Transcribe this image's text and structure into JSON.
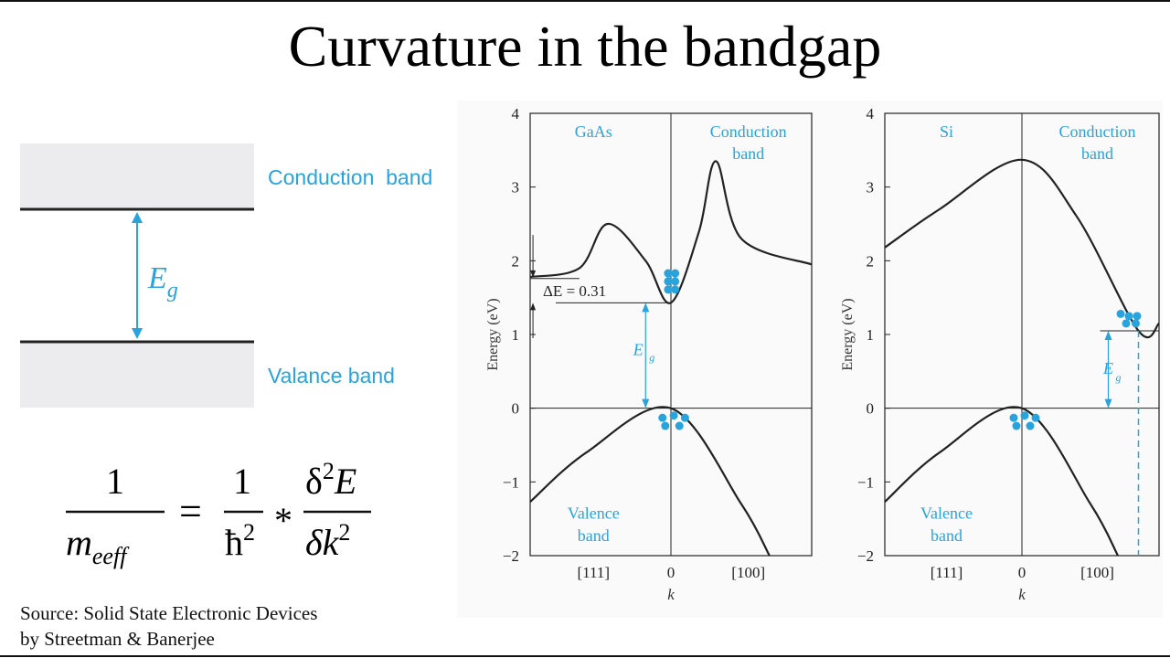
{
  "title": "Curvature in the bandgap",
  "band_diagram": {
    "conduction_label": "Conduction  band",
    "valence_label": "Valance band",
    "gap_label": "E",
    "gap_subscript": "g"
  },
  "formula": {
    "numerator_left": "1",
    "denominator_left": "m",
    "denominator_left_sub": "eeff",
    "equals": "=",
    "numerator_mid": "1",
    "denominator_mid": "ħ",
    "star": "*",
    "numerator_right": "δ",
    "numerator_right_tail": "E",
    "denominator_right": "δk",
    "exponent": "2"
  },
  "source": {
    "line1": "Source: Solid State Electronic Devices",
    "line2": "by Streetman & Banerjee"
  },
  "colors": {
    "accent": "#29a3dc",
    "band_fill": "#ececef",
    "line": "#222222"
  },
  "chart_data": [
    {
      "type": "line",
      "material": "GaAs",
      "region_label": [
        "Conduction",
        "band"
      ],
      "valence_label": [
        "Valence",
        "band"
      ],
      "ylabel": "Energy (eV)",
      "xlabel": "k",
      "x_ticks": [
        "[111]",
        "0",
        "[100]"
      ],
      "ylim": [
        -2,
        4
      ],
      "y_ticks": [
        "4",
        "3",
        "2",
        "1",
        "0",
        "−1",
        "−2"
      ],
      "gap_label": "E",
      "gap_subscript": "g",
      "delta_label": "ΔE = 0.31",
      "conduction_points": [
        [
          -1,
          1.78
        ],
        [
          -0.65,
          1.9
        ],
        [
          -0.45,
          2.5
        ],
        [
          -0.18,
          2.0
        ],
        [
          0,
          1.43
        ],
        [
          0.2,
          2.4
        ],
        [
          0.32,
          3.35
        ],
        [
          0.5,
          2.3
        ],
        [
          1.0,
          1.95
        ]
      ],
      "valence_points": [
        [
          -1,
          -1.27
        ],
        [
          -0.6,
          -0.6
        ],
        [
          0,
          0
        ],
        [
          0.5,
          -1.3
        ],
        [
          0.7,
          -2.0
        ]
      ]
    },
    {
      "type": "line",
      "material": "Si",
      "region_label": [
        "Conduction",
        "band"
      ],
      "valence_label": [
        "Valence",
        "band"
      ],
      "ylabel": "Energy (eV)",
      "xlabel": "k",
      "x_ticks": [
        "[111]",
        "0",
        "[100]"
      ],
      "ylim": [
        -2,
        4
      ],
      "y_ticks": [
        "4",
        "3",
        "2",
        "1",
        "0",
        "−1",
        "−2"
      ],
      "gap_label": "E",
      "gap_subscript": "g",
      "conduction_points": [
        [
          -1,
          2.18
        ],
        [
          -0.6,
          2.7
        ],
        [
          0,
          3.37
        ],
        [
          0.4,
          2.6
        ],
        [
          0.85,
          1.05
        ],
        [
          1.0,
          1.15
        ]
      ],
      "valence_points": [
        [
          -1,
          -1.27
        ],
        [
          -0.6,
          -0.6
        ],
        [
          0,
          0
        ],
        [
          0.5,
          -1.3
        ],
        [
          0.7,
          -2.0
        ]
      ]
    }
  ]
}
